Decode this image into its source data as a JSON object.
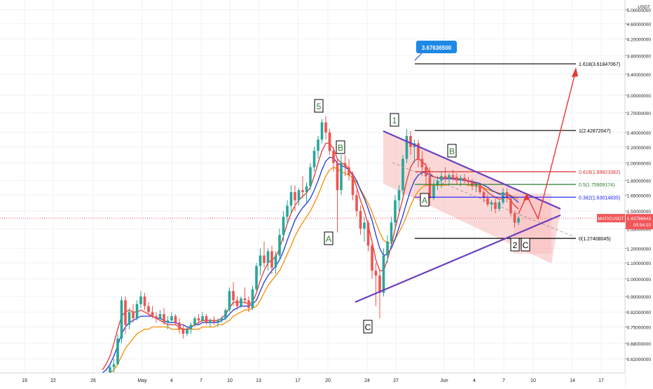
{
  "chart_data": {
    "type": "candlestick",
    "symbol": "MATICUSDT",
    "currency": "USDT",
    "y_axis": {
      "scale": "log",
      "range": [
        0.57,
        5.3
      ],
      "ticks": [
        {
          "value": 5.0,
          "label": "5.00000000"
        },
        {
          "value": 4.6,
          "label": "4.60000000"
        },
        {
          "value": 4.2,
          "label": "4.20000000"
        },
        {
          "value": 3.8,
          "label": "3.80000000"
        },
        {
          "value": 3.4,
          "label": "3.40000000"
        },
        {
          "value": 3.0,
          "label": "3.00000000"
        },
        {
          "value": 2.7,
          "label": "2.70000000"
        },
        {
          "value": 2.4,
          "label": "2.40000000"
        },
        {
          "value": 2.2,
          "label": "2.20000000"
        },
        {
          "value": 2.0,
          "label": "2.00000000"
        },
        {
          "value": 1.8,
          "label": "1.80000000"
        },
        {
          "value": 1.65,
          "label": "1.65000000"
        },
        {
          "value": 1.5,
          "label": "1.50000000"
        },
        {
          "value": 1.35,
          "label": "1.35000000"
        },
        {
          "value": 1.2,
          "label": "1.20000000"
        },
        {
          "value": 1.1,
          "label": "1.10000000"
        },
        {
          "value": 1.0,
          "label": "1.00000000"
        },
        {
          "value": 0.9,
          "label": "0.90000000"
        },
        {
          "value": 0.82,
          "label": "0.82000000"
        },
        {
          "value": 0.75,
          "label": "0.75000000"
        },
        {
          "value": 0.68,
          "label": "0.68000000"
        },
        {
          "value": 0.62,
          "label": "0.62000000"
        }
      ]
    },
    "x_axis": {
      "ticks": [
        "19",
        "22",
        "26",
        "May",
        "4",
        "7",
        "10",
        "13",
        "17",
        "20",
        "24",
        "27",
        "Jun",
        "4",
        "7",
        "10",
        "14",
        "17"
      ]
    },
    "last_price": {
      "value": 1.43786643,
      "label": "1.43786643",
      "countdown": "03:54:10",
      "color": "#f0575a"
    },
    "fib_levels": [
      {
        "ratio": "1.618",
        "value": 3.61847067,
        "label": "1.618(3.61847067)",
        "color": "#000000"
      },
      {
        "ratio": "1",
        "value": 2.42872047,
        "label": "1(2.42872047)",
        "color": "#000000"
      },
      {
        "ratio": "0.618",
        "value": 1.89823382,
        "label": "0.618(1.89823382)",
        "color": "#d32f2f"
      },
      {
        "ratio": "0.5",
        "value": 1.75909174,
        "label": "0.5(1.75909174)",
        "color": "#2e7d32"
      },
      {
        "ratio": "0.382",
        "value": 1.63014835,
        "label": "0.382(1.63014835)",
        "color": "#1a1aff"
      },
      {
        "ratio": "0",
        "value": 1.27408045,
        "label": "0(1.27408045)",
        "color": "#000000"
      }
    ],
    "price_callout": {
      "label": "3.67636500",
      "value": 3.676365,
      "color": "#1e88e5"
    },
    "wave_labels": [
      "5",
      "A",
      "B",
      "C",
      "1",
      "A",
      "B",
      "2",
      "C"
    ],
    "colors": {
      "up": "#26a69a",
      "down": "#ef5350",
      "ma_fast": "#e53935",
      "ma_mid": "#1e3ad8",
      "ma_slow": "#fb8c00",
      "channel_fill": "#f8b8b8",
      "trendline": "#6a3fbf",
      "projection": "#e53935"
    },
    "ohlc": [
      [
        0.55,
        0.56,
        0.54,
        0.555
      ],
      [
        0.555,
        0.57,
        0.55,
        0.565
      ],
      [
        0.565,
        0.6,
        0.56,
        0.59
      ],
      [
        0.59,
        0.62,
        0.57,
        0.6
      ],
      [
        0.6,
        0.72,
        0.6,
        0.7
      ],
      [
        0.7,
        0.9,
        0.68,
        0.88
      ],
      [
        0.88,
        0.9,
        0.72,
        0.76
      ],
      [
        0.76,
        0.84,
        0.74,
        0.82
      ],
      [
        0.82,
        0.86,
        0.77,
        0.79
      ],
      [
        0.79,
        0.88,
        0.78,
        0.86
      ],
      [
        0.86,
        0.93,
        0.84,
        0.9
      ],
      [
        0.9,
        0.92,
        0.83,
        0.85
      ],
      [
        0.85,
        0.87,
        0.8,
        0.82
      ],
      [
        0.82,
        0.85,
        0.79,
        0.8
      ],
      [
        0.8,
        0.82,
        0.77,
        0.79
      ],
      [
        0.79,
        0.83,
        0.78,
        0.81
      ],
      [
        0.81,
        0.84,
        0.76,
        0.77
      ],
      [
        0.77,
        0.8,
        0.74,
        0.78
      ],
      [
        0.78,
        0.82,
        0.77,
        0.8
      ],
      [
        0.8,
        0.81,
        0.76,
        0.77
      ],
      [
        0.77,
        0.79,
        0.72,
        0.74
      ],
      [
        0.74,
        0.76,
        0.7,
        0.72
      ],
      [
        0.72,
        0.75,
        0.71,
        0.74
      ],
      [
        0.74,
        0.77,
        0.72,
        0.76
      ],
      [
        0.76,
        0.8,
        0.75,
        0.79
      ],
      [
        0.79,
        0.81,
        0.76,
        0.78
      ],
      [
        0.78,
        0.82,
        0.77,
        0.8
      ],
      [
        0.8,
        0.81,
        0.76,
        0.77
      ],
      [
        0.77,
        0.79,
        0.75,
        0.78
      ],
      [
        0.78,
        0.8,
        0.76,
        0.77
      ],
      [
        0.77,
        0.79,
        0.75,
        0.78
      ],
      [
        0.78,
        0.8,
        0.77,
        0.79
      ],
      [
        0.79,
        0.84,
        0.78,
        0.83
      ],
      [
        0.83,
        0.95,
        0.82,
        0.93
      ],
      [
        0.93,
        0.98,
        0.85,
        0.88
      ],
      [
        0.88,
        0.9,
        0.83,
        0.85
      ],
      [
        0.85,
        0.9,
        0.84,
        0.89
      ],
      [
        0.89,
        0.95,
        0.86,
        0.88
      ],
      [
        0.88,
        0.9,
        0.82,
        0.84
      ],
      [
        0.84,
        0.96,
        0.83,
        0.94
      ],
      [
        0.94,
        1.1,
        0.93,
        1.08
      ],
      [
        1.08,
        1.2,
        1.02,
        1.15
      ],
      [
        1.15,
        1.25,
        1.07,
        1.1
      ],
      [
        1.1,
        1.2,
        1.05,
        1.18
      ],
      [
        1.18,
        1.22,
        1.03,
        1.07
      ],
      [
        1.07,
        1.18,
        1.03,
        1.15
      ],
      [
        1.15,
        1.35,
        1.12,
        1.3
      ],
      [
        1.3,
        1.5,
        1.25,
        1.45
      ],
      [
        1.45,
        1.6,
        1.38,
        1.55
      ],
      [
        1.55,
        1.75,
        1.48,
        1.68
      ],
      [
        1.68,
        1.75,
        1.5,
        1.6
      ],
      [
        1.6,
        1.72,
        1.55,
        1.7
      ],
      [
        1.7,
        1.85,
        1.62,
        1.68
      ],
      [
        1.68,
        1.78,
        1.58,
        1.74
      ],
      [
        1.74,
        2.0,
        1.7,
        1.95
      ],
      [
        1.95,
        2.2,
        1.9,
        2.15
      ],
      [
        2.15,
        2.35,
        2.05,
        2.3
      ],
      [
        2.3,
        2.6,
        2.25,
        2.55
      ],
      [
        2.55,
        2.65,
        2.3,
        2.4
      ],
      [
        2.4,
        2.45,
        2.1,
        2.15
      ],
      [
        2.15,
        2.2,
        1.9,
        2.0
      ],
      [
        2.0,
        2.05,
        1.32,
        1.7
      ],
      [
        1.7,
        2.1,
        1.65,
        2.0
      ],
      [
        2.0,
        2.1,
        1.85,
        1.95
      ],
      [
        1.95,
        2.05,
        1.8,
        1.86
      ],
      [
        1.86,
        1.9,
        1.6,
        1.65
      ],
      [
        1.65,
        1.7,
        1.45,
        1.5
      ],
      [
        1.5,
        1.55,
        1.3,
        1.35
      ],
      [
        1.35,
        1.45,
        1.25,
        1.4
      ],
      [
        1.4,
        1.42,
        1.18,
        1.22
      ],
      [
        1.22,
        1.25,
        1.0,
        1.05
      ],
      [
        1.05,
        1.1,
        0.85,
        1.02
      ],
      [
        1.02,
        1.05,
        0.79,
        0.92
      ],
      [
        0.92,
        1.2,
        0.9,
        1.15
      ],
      [
        1.15,
        1.3,
        1.1,
        1.25
      ],
      [
        1.25,
        1.45,
        1.2,
        1.4
      ],
      [
        1.4,
        1.65,
        1.35,
        1.6
      ],
      [
        1.6,
        1.75,
        1.5,
        1.7
      ],
      [
        1.7,
        2.1,
        1.65,
        2.05
      ],
      [
        2.05,
        2.45,
        2.0,
        2.35
      ],
      [
        2.35,
        2.42,
        2.1,
        2.2
      ],
      [
        2.2,
        2.3,
        2.0,
        2.25
      ],
      [
        2.25,
        2.3,
        1.95,
        2.05
      ],
      [
        2.05,
        2.15,
        1.85,
        1.95
      ],
      [
        1.95,
        2.0,
        1.75,
        1.85
      ],
      [
        1.85,
        1.95,
        1.55,
        1.62
      ],
      [
        1.62,
        1.8,
        1.6,
        1.75
      ],
      [
        1.75,
        1.85,
        1.7,
        1.8
      ],
      [
        1.8,
        1.9,
        1.72,
        1.85
      ],
      [
        1.85,
        1.95,
        1.78,
        1.82
      ],
      [
        1.82,
        1.88,
        1.75,
        1.86
      ],
      [
        1.86,
        1.92,
        1.8,
        1.84
      ],
      [
        1.84,
        1.88,
        1.76,
        1.8
      ],
      [
        1.8,
        1.86,
        1.74,
        1.83
      ],
      [
        1.83,
        1.87,
        1.77,
        1.8
      ],
      [
        1.8,
        1.84,
        1.75,
        1.78
      ],
      [
        1.78,
        1.82,
        1.7,
        1.74
      ],
      [
        1.74,
        1.78,
        1.68,
        1.76
      ],
      [
        1.76,
        1.78,
        1.66,
        1.68
      ],
      [
        1.68,
        1.72,
        1.58,
        1.62
      ],
      [
        1.62,
        1.66,
        1.54,
        1.56
      ],
      [
        1.56,
        1.6,
        1.5,
        1.58
      ],
      [
        1.58,
        1.62,
        1.48,
        1.52
      ],
      [
        1.52,
        1.6,
        1.5,
        1.58
      ],
      [
        1.58,
        1.72,
        1.56,
        1.68
      ],
      [
        1.68,
        1.72,
        1.58,
        1.62
      ],
      [
        1.62,
        1.64,
        1.45,
        1.48
      ],
      [
        1.48,
        1.5,
        1.36,
        1.4
      ],
      [
        1.4,
        1.46,
        1.38,
        1.44
      ]
    ],
    "ma_fast": [
      0.58,
      0.6,
      0.63,
      0.68,
      0.74,
      0.8,
      0.82,
      0.83,
      0.82,
      0.82,
      0.83,
      0.82,
      0.81,
      0.8,
      0.79,
      0.78,
      0.77,
      0.76,
      0.76,
      0.76,
      0.75,
      0.74,
      0.74,
      0.75,
      0.76,
      0.77,
      0.78,
      0.78,
      0.78,
      0.78,
      0.78,
      0.79,
      0.81,
      0.84,
      0.87,
      0.87,
      0.87,
      0.87,
      0.86,
      0.87,
      0.92,
      0.99,
      1.05,
      1.1,
      1.12,
      1.14,
      1.2,
      1.29,
      1.39,
      1.48,
      1.55,
      1.6,
      1.64,
      1.67,
      1.73,
      1.85,
      2.0,
      2.15,
      2.25,
      2.25,
      2.18,
      2.05,
      2.0,
      1.98,
      1.93,
      1.85,
      1.73,
      1.6,
      1.5,
      1.38,
      1.25,
      1.12,
      1.05,
      1.05,
      1.12,
      1.22,
      1.35,
      1.48,
      1.62,
      1.8,
      1.95,
      2.03,
      2.05,
      2.02,
      1.97,
      1.88,
      1.84,
      1.83,
      1.83,
      1.83,
      1.83,
      1.83,
      1.82,
      1.82,
      1.81,
      1.8,
      1.78,
      1.77,
      1.75,
      1.72,
      1.68,
      1.65,
      1.63,
      1.61,
      1.62,
      1.63,
      1.6,
      1.55,
      1.52
    ],
    "ma_mid": [
      0.57,
      0.58,
      0.6,
      0.63,
      0.67,
      0.72,
      0.75,
      0.77,
      0.78,
      0.79,
      0.8,
      0.8,
      0.8,
      0.8,
      0.79,
      0.79,
      0.78,
      0.77,
      0.77,
      0.77,
      0.76,
      0.76,
      0.75,
      0.75,
      0.76,
      0.76,
      0.77,
      0.77,
      0.77,
      0.77,
      0.77,
      0.78,
      0.79,
      0.81,
      0.83,
      0.84,
      0.85,
      0.85,
      0.85,
      0.86,
      0.88,
      0.93,
      0.98,
      1.02,
      1.05,
      1.08,
      1.12,
      1.18,
      1.26,
      1.34,
      1.42,
      1.48,
      1.53,
      1.57,
      1.62,
      1.7,
      1.8,
      1.92,
      2.02,
      2.07,
      2.06,
      2.0,
      1.97,
      1.95,
      1.92,
      1.87,
      1.8,
      1.7,
      1.62,
      1.52,
      1.42,
      1.3,
      1.2,
      1.15,
      1.16,
      1.2,
      1.27,
      1.36,
      1.46,
      1.58,
      1.7,
      1.8,
      1.86,
      1.89,
      1.89,
      1.86,
      1.84,
      1.83,
      1.82,
      1.82,
      1.82,
      1.82,
      1.81,
      1.81,
      1.8,
      1.8,
      1.79,
      1.78,
      1.77,
      1.75,
      1.73,
      1.7,
      1.68,
      1.66,
      1.66,
      1.66,
      1.64,
      1.61,
      1.58
    ],
    "ma_slow": [
      0.55,
      0.56,
      0.57,
      0.58,
      0.6,
      0.63,
      0.66,
      0.68,
      0.7,
      0.72,
      0.73,
      0.74,
      0.74,
      0.75,
      0.75,
      0.75,
      0.75,
      0.75,
      0.74,
      0.74,
      0.74,
      0.74,
      0.74,
      0.74,
      0.74,
      0.74,
      0.75,
      0.75,
      0.75,
      0.75,
      0.76,
      0.76,
      0.77,
      0.78,
      0.8,
      0.81,
      0.82,
      0.83,
      0.83,
      0.84,
      0.85,
      0.88,
      0.92,
      0.96,
      0.99,
      1.02,
      1.05,
      1.1,
      1.16,
      1.22,
      1.29,
      1.35,
      1.4,
      1.45,
      1.5,
      1.57,
      1.65,
      1.75,
      1.85,
      1.92,
      1.95,
      1.93,
      1.9,
      1.88,
      1.86,
      1.83,
      1.78,
      1.71,
      1.64,
      1.57,
      1.49,
      1.4,
      1.32,
      1.26,
      1.24,
      1.24,
      1.27,
      1.32,
      1.38,
      1.46,
      1.55,
      1.63,
      1.69,
      1.73,
      1.75,
      1.75,
      1.75,
      1.75,
      1.75,
      1.75,
      1.76,
      1.76,
      1.76,
      1.76,
      1.76,
      1.75,
      1.75,
      1.74,
      1.73,
      1.72,
      1.71,
      1.69,
      1.68,
      1.67,
      1.66,
      1.66,
      1.65,
      1.63,
      1.61
    ]
  }
}
